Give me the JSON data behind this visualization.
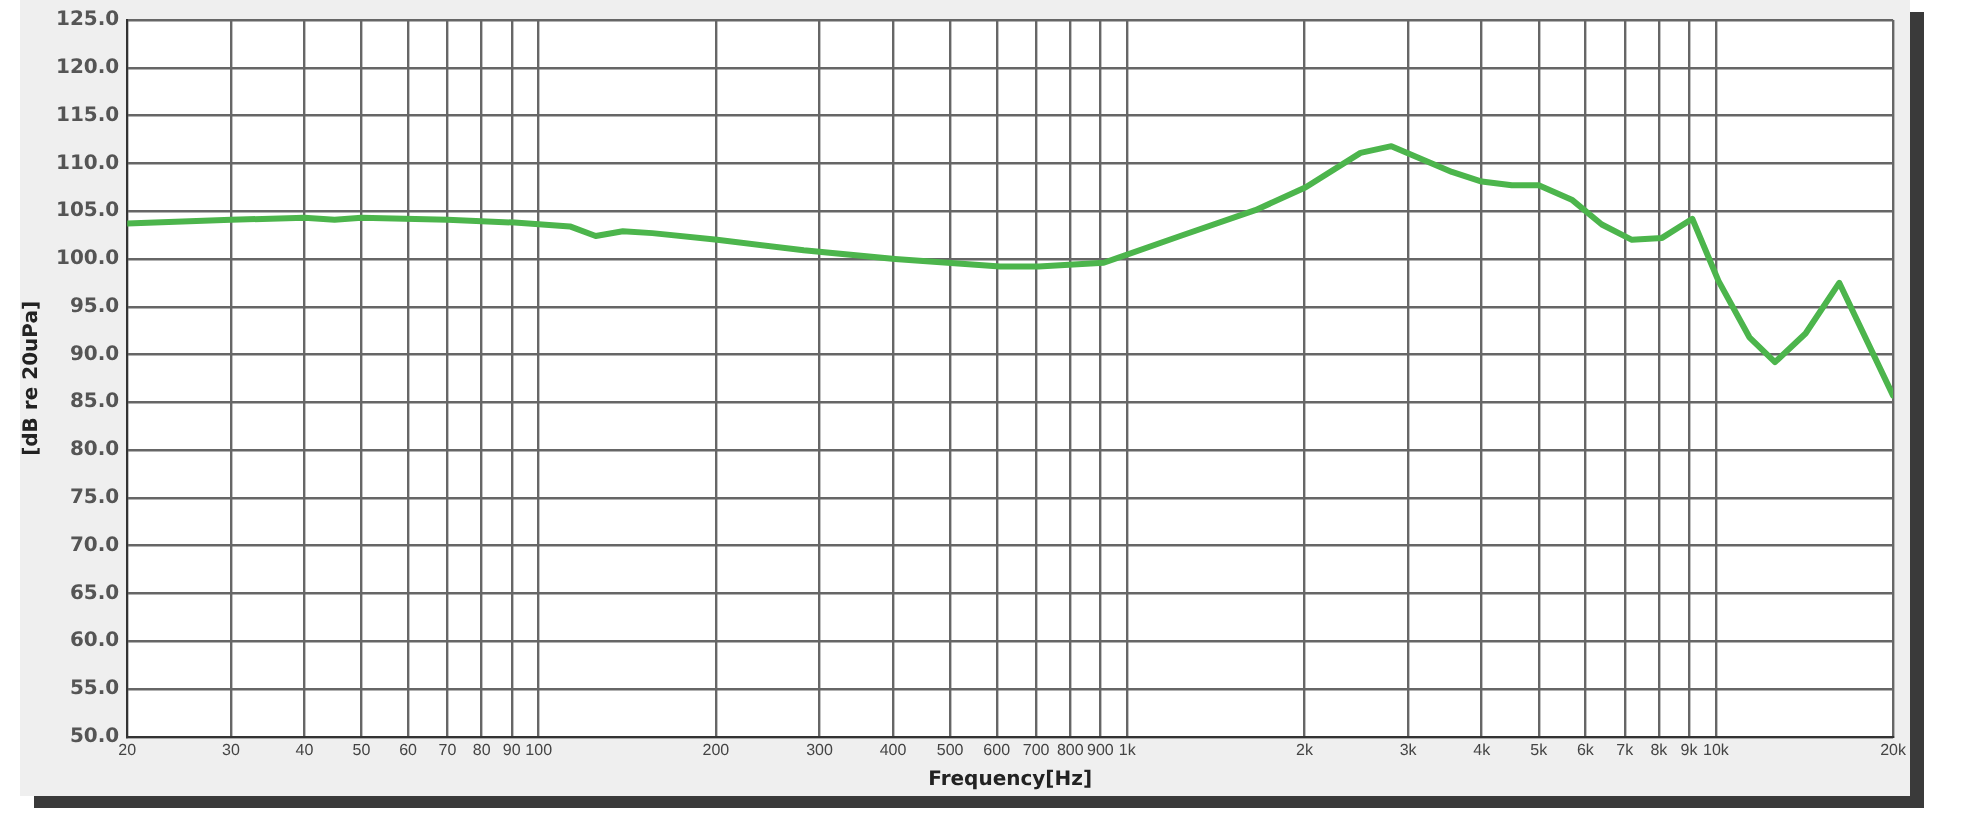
{
  "chart_data": {
    "type": "line",
    "xlabel": "Frequency[Hz]",
    "ylabel": "[dB re 20uPa]",
    "log": "x",
    "grid": true,
    "marker": "none",
    "line_style": "solid",
    "legend": false,
    "xlim": [
      20,
      20000
    ],
    "xticks": [
      20,
      30,
      40,
      50,
      60,
      70,
      80,
      90,
      100,
      200,
      300,
      400,
      500,
      600,
      700,
      800,
      900,
      {
        "value": 1000,
        "label": "1k"
      },
      {
        "value": 2000,
        "label": "2k"
      },
      {
        "value": 3000,
        "label": "3k"
      },
      {
        "value": 4000,
        "label": "4k"
      },
      {
        "value": 5000,
        "label": "5k"
      },
      {
        "value": 6000,
        "label": "6k"
      },
      {
        "value": 7000,
        "label": "7k"
      },
      {
        "value": 8000,
        "label": "8k"
      },
      {
        "value": 9000,
        "label": "9k"
      },
      {
        "value": 10000,
        "label": "10k"
      },
      {
        "value": 20000,
        "label": "20k"
      }
    ],
    "ylim": [
      50,
      125
    ],
    "yticks": [
      {
        "value": 50,
        "label": "50.0"
      },
      {
        "value": 55,
        "label": "55.0"
      },
      {
        "value": 60,
        "label": "60.0"
      },
      {
        "value": 65,
        "label": "65.0"
      },
      {
        "value": 70,
        "label": "70.0"
      },
      {
        "value": 75,
        "label": "75.0"
      },
      {
        "value": 80,
        "label": "80.0"
      },
      {
        "value": 85,
        "label": "85.0"
      },
      {
        "value": 90,
        "label": "90.0"
      },
      {
        "value": 95,
        "label": "95.0"
      },
      {
        "value": 100,
        "label": "100.0"
      },
      {
        "value": 105,
        "label": "105.0"
      },
      {
        "value": 110,
        "label": "110.0"
      },
      {
        "value": 115,
        "label": "115.0"
      },
      {
        "value": 120,
        "label": "120.0"
      },
      {
        "value": 125,
        "label": "125.0"
      }
    ],
    "x": [
      20,
      30,
      40,
      45,
      50,
      70,
      91,
      113,
      125,
      139,
      156,
      201,
      282,
      403,
      608,
      707,
      912,
      1230,
      1650,
      2010,
      2490,
      2810,
      3560,
      4000,
      4500,
      5000,
      5690,
      6400,
      7200,
      8100,
      9120,
      10100,
      11400,
      12600,
      14200,
      16200,
      20000
    ],
    "series": [
      {
        "color": "#4cb54c",
        "values": [
          103.7,
          104.1,
          104.3,
          104.1,
          104.3,
          104.1,
          103.8,
          103.4,
          102.4,
          102.9,
          102.7,
          102.0,
          100.9,
          100.0,
          99.2,
          99.2,
          99.6,
          102.4,
          105.1,
          107.5,
          111.1,
          111.8,
          109.1,
          108.1,
          107.7,
          107.7,
          106.2,
          103.6,
          102.0,
          102.2,
          104.2,
          97.7,
          91.8,
          89.2,
          92.2,
          97.5,
          85.7
        ]
      }
    ]
  }
}
